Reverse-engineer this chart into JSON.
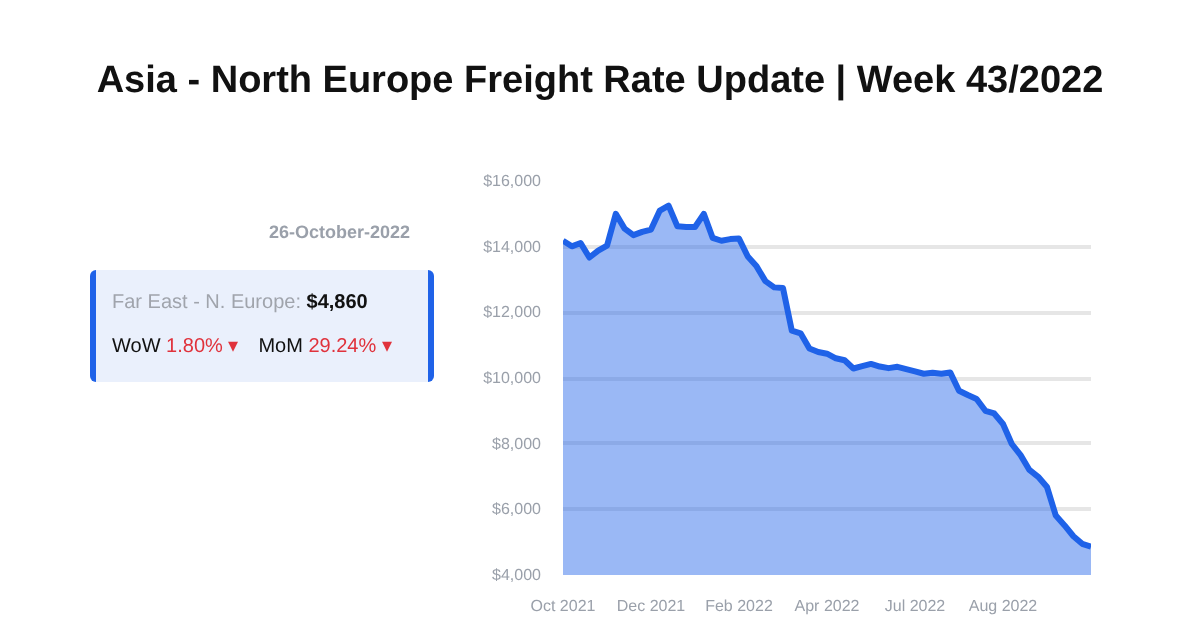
{
  "chart_data": {
    "type": "area",
    "title": "Asia - North Europe Freight Rate Update | Week 43/2022",
    "annotations": [
      "26-October-2022",
      "Far East - N. Europe: $4,860",
      "WoW 1.80% ▾",
      "MoM 29.24% ▾"
    ],
    "categories": [
      "Oct 2021",
      null,
      null,
      null,
      null,
      null,
      null,
      null,
      null,
      null,
      "Dec 2021",
      null,
      null,
      null,
      null,
      null,
      null,
      null,
      null,
      null,
      "Feb 2022",
      null,
      null,
      null,
      null,
      null,
      null,
      null,
      null,
      null,
      "Apr 2022",
      null,
      null,
      null,
      null,
      null,
      null,
      null,
      null,
      null,
      "Jul 2022",
      null,
      null,
      null,
      null,
      null,
      null,
      null,
      null,
      null,
      "Aug 2022",
      null,
      null,
      null,
      null,
      null,
      null,
      null,
      null,
      null,
      null
    ],
    "values": [
      14180,
      14010,
      14110,
      13670,
      13880,
      14030,
      15000,
      14550,
      14350,
      14450,
      14520,
      15100,
      15250,
      14620,
      14600,
      14600,
      15000,
      14270,
      14180,
      14230,
      14250,
      13700,
      13400,
      12950,
      12760,
      12740,
      11440,
      11360,
      10900,
      10790,
      10740,
      10600,
      10540,
      10290,
      10360,
      10430,
      10350,
      10300,
      10340,
      10270,
      10200,
      10130,
      10160,
      10130,
      10170,
      9610,
      9480,
      9360,
      9000,
      8920,
      8600,
      7990,
      7650,
      7200,
      6990,
      6680,
      5810,
      5510,
      5180,
      4950,
      4860
    ],
    "color": "#1f62e8",
    "ylim": [
      4000,
      16000
    ],
    "yticks": [
      {
        "value": 4000,
        "label": "$4,000"
      },
      {
        "value": 6000,
        "label": "$6,000"
      },
      {
        "value": 8000,
        "label": "$8,000"
      },
      {
        "value": 10000,
        "label": "$10,000"
      },
      {
        "value": 12000,
        "label": "$12,000"
      },
      {
        "value": 14000,
        "label": "$14,000"
      },
      {
        "value": 16000,
        "label": "$16,000"
      }
    ],
    "grid": "y"
  }
}
